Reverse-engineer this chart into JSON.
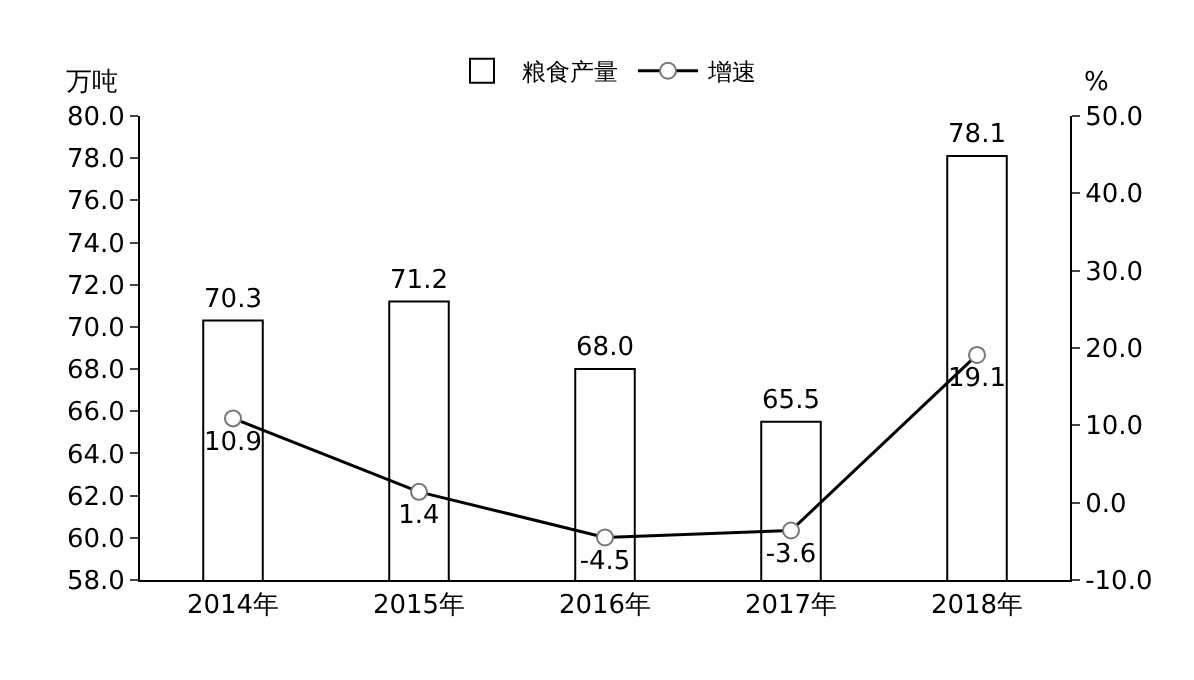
{
  "chart_data": {
    "type": "bar",
    "ylabel": "万吨",
    "y2label": "%",
    "categories": [
      "2014年",
      "2015年",
      "2016年",
      "2017年",
      "2018年"
    ],
    "series": [
      {
        "name": "粮食产量",
        "color": "#ffffff",
        "values": [
          70.3,
          71.2,
          68.0,
          65.5,
          78.1
        ],
        "value_labels": [
          "70.3",
          "71.2",
          "68.0",
          "65.5",
          "78.1"
        ]
      },
      {
        "name": "增速",
        "type": "line",
        "axis": "y2",
        "color": "#000000",
        "marker": "circle",
        "values": [
          10.9,
          1.4,
          -4.5,
          -3.6,
          19.1
        ],
        "value_labels": [
          "10.9",
          "1.4",
          "-4.5",
          "-3.6",
          "19.1"
        ]
      }
    ],
    "ylim": [
      58,
      80
    ],
    "yticks": [
      {
        "value": 58,
        "label": "58.0"
      },
      {
        "value": 60,
        "label": "60.0"
      },
      {
        "value": 62,
        "label": "62.0"
      },
      {
        "value": 64,
        "label": "64.0"
      },
      {
        "value": 66,
        "label": "66.0"
      },
      {
        "value": 68,
        "label": "68.0"
      },
      {
        "value": 70,
        "label": "70.0"
      },
      {
        "value": 72,
        "label": "72.0"
      },
      {
        "value": 74,
        "label": "74.0"
      },
      {
        "value": 76,
        "label": "76.0"
      },
      {
        "value": 78,
        "label": "78.0"
      },
      {
        "value": 80,
        "label": "80.0"
      }
    ],
    "y2lim": [
      -10,
      50
    ],
    "y2ticks": [
      {
        "value": -10,
        "label": "-10.0"
      },
      {
        "value": 0,
        "label": "0.0"
      },
      {
        "value": 10,
        "label": "10.0"
      },
      {
        "value": 20,
        "label": "20.0"
      },
      {
        "value": 30,
        "label": "30.0"
      },
      {
        "value": 40,
        "label": "40.0"
      },
      {
        "value": 50,
        "label": "50.0"
      }
    ],
    "legend": "top"
  }
}
